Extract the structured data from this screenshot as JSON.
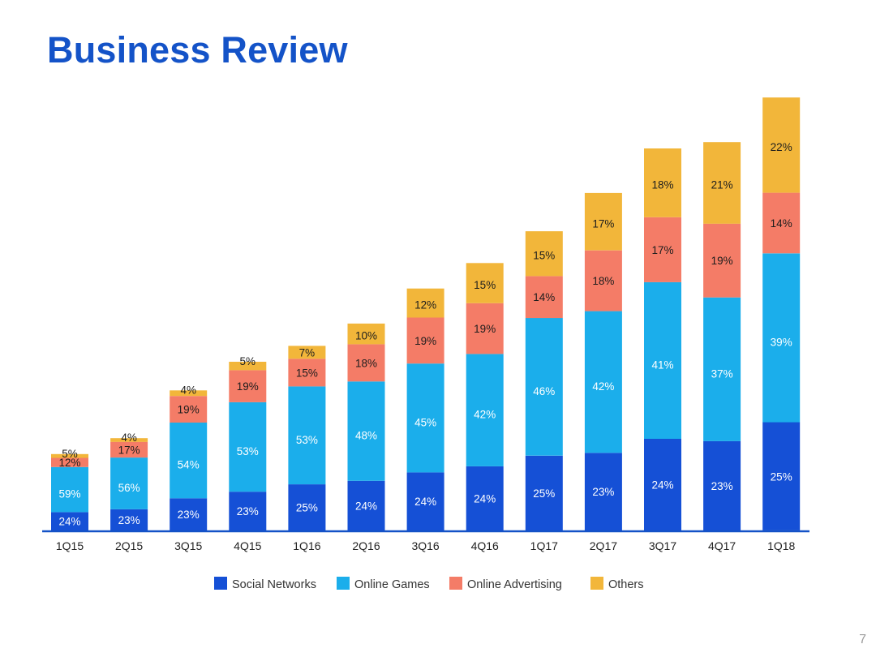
{
  "slide": {
    "title": "Business Review",
    "page_number": "7"
  },
  "chart_data": {
    "type": "bar",
    "stacked": true,
    "title": "",
    "xlabel": "",
    "ylabel": "",
    "grid": false,
    "legend_position": "bottom",
    "categories": [
      "1Q15",
      "2Q15",
      "3Q15",
      "4Q15",
      "1Q16",
      "2Q16",
      "3Q16",
      "4Q16",
      "1Q17",
      "2Q17",
      "3Q17",
      "4Q17",
      "1Q18"
    ],
    "totals_relative": [
      12,
      14.5,
      22,
      26.5,
      29,
      32.5,
      38,
      42,
      47,
      53,
      60,
      61,
      68
    ],
    "series": [
      {
        "name": "Social Networks",
        "color": "#1550D6",
        "values": [
          24,
          23,
          23,
          23,
          25,
          24,
          24,
          24,
          25,
          23,
          24,
          23,
          25
        ]
      },
      {
        "name": "Online Games",
        "color": "#1BAEEB",
        "values": [
          59,
          56,
          54,
          53,
          53,
          48,
          45,
          42,
          46,
          42,
          41,
          37,
          39
        ]
      },
      {
        "name": "Online Advertising",
        "color": "#F47C67",
        "values": [
          12,
          17,
          19,
          19,
          15,
          18,
          19,
          19,
          14,
          18,
          17,
          19,
          14
        ]
      },
      {
        "name": "Others",
        "color": "#F2B63A",
        "values": [
          5,
          4,
          4,
          5,
          7,
          10,
          12,
          15,
          15,
          17,
          18,
          21,
          22
        ]
      }
    ],
    "data_labels": [
      [
        "24%",
        "59%",
        "12%",
        "5%"
      ],
      [
        "23%",
        "56%",
        "17%",
        "4%"
      ],
      [
        "23%",
        "54%",
        "19%",
        "4%"
      ],
      [
        "23%",
        "53%",
        "19%",
        "5%"
      ],
      [
        "25%",
        "53%",
        "15%",
        "7%"
      ],
      [
        "24%",
        "48%",
        "18%",
        "10%"
      ],
      [
        "24%",
        "45%",
        "19%",
        "12%"
      ],
      [
        "24%",
        "42%",
        "19%",
        "15%"
      ],
      [
        "25%",
        "46%",
        "14%",
        "15%"
      ],
      [
        "23%",
        "42%",
        "18%",
        "17%"
      ],
      [
        "24%",
        "41%",
        "17%",
        "18%"
      ],
      [
        "23%",
        "37%",
        "19%",
        "21%"
      ],
      [
        "25%",
        "39%",
        "14%",
        "22%"
      ]
    ]
  }
}
